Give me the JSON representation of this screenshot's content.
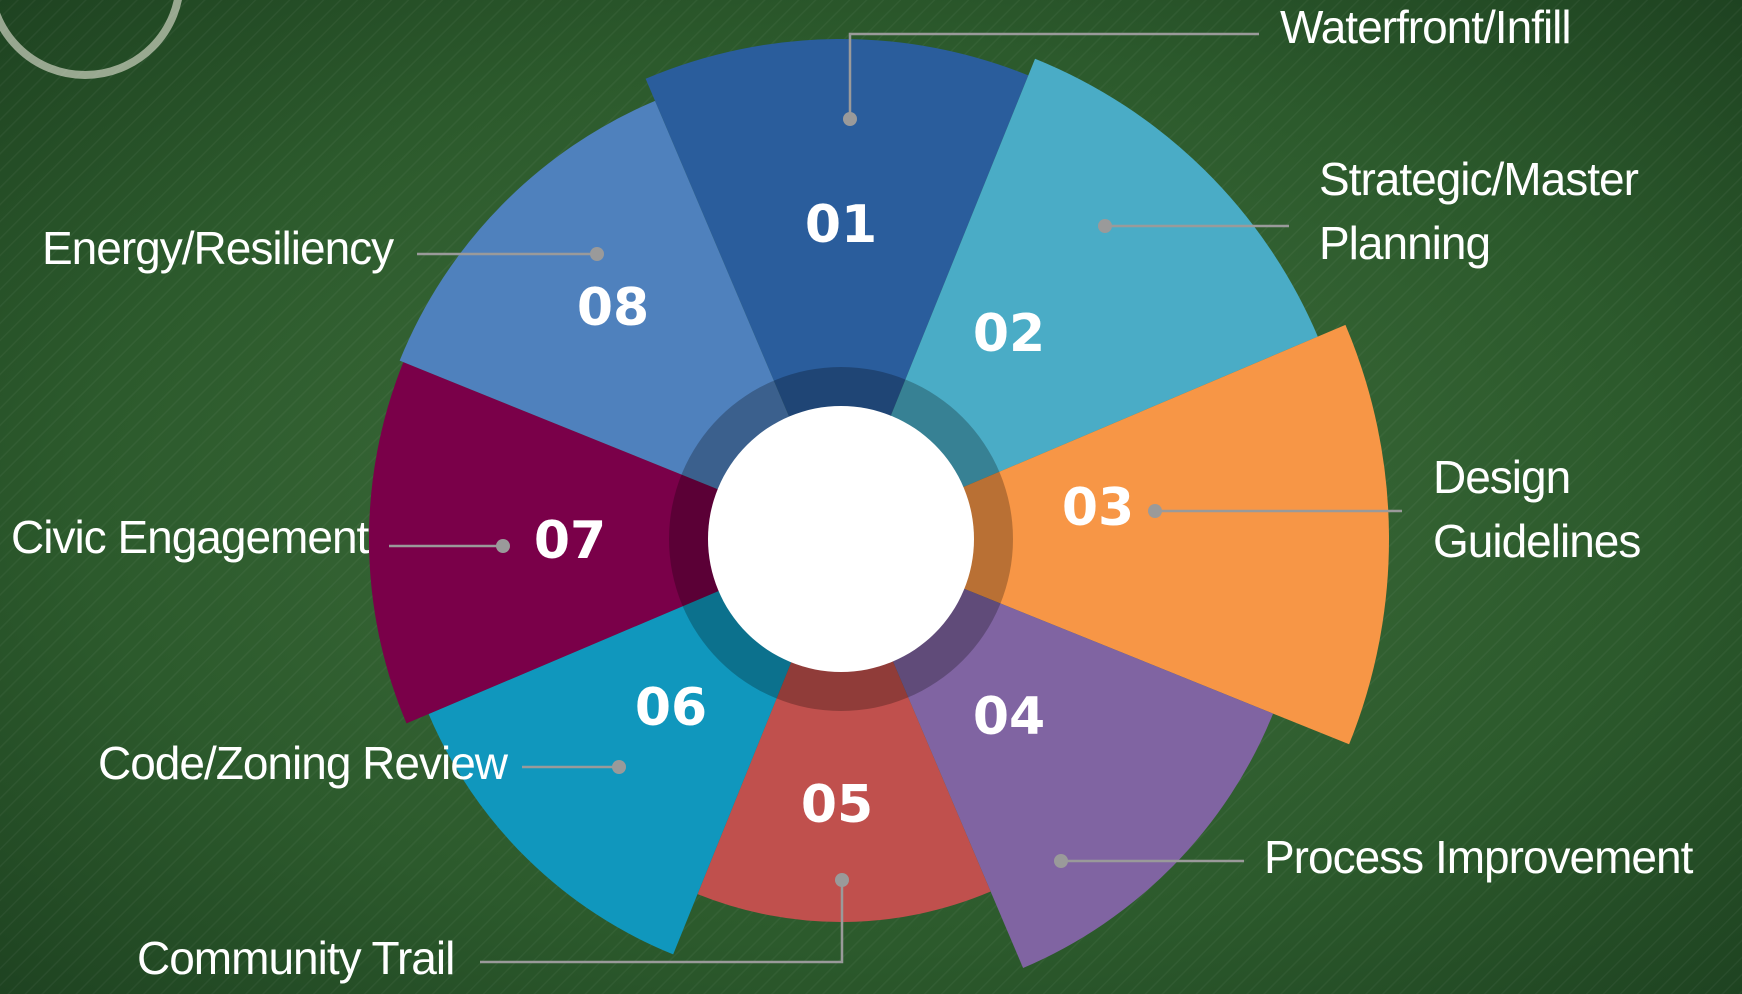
{
  "segments": [
    {
      "number": "01",
      "label": [
        "Waterfront/Infill"
      ]
    },
    {
      "number": "02",
      "label": [
        "Strategic/Master",
        "Planning"
      ]
    },
    {
      "number": "03",
      "label": [
        "Design",
        "Guidelines"
      ]
    },
    {
      "number": "04",
      "label": [
        "Process Improvement"
      ]
    },
    {
      "number": "05",
      "label": [
        "Community Trail"
      ]
    },
    {
      "number": "06",
      "label": [
        "Code/Zoning Review"
      ]
    },
    {
      "number": "07",
      "label": [
        "Civic Engagement"
      ]
    },
    {
      "number": "08",
      "label": [
        "Energy/Resiliency"
      ]
    }
  ]
}
